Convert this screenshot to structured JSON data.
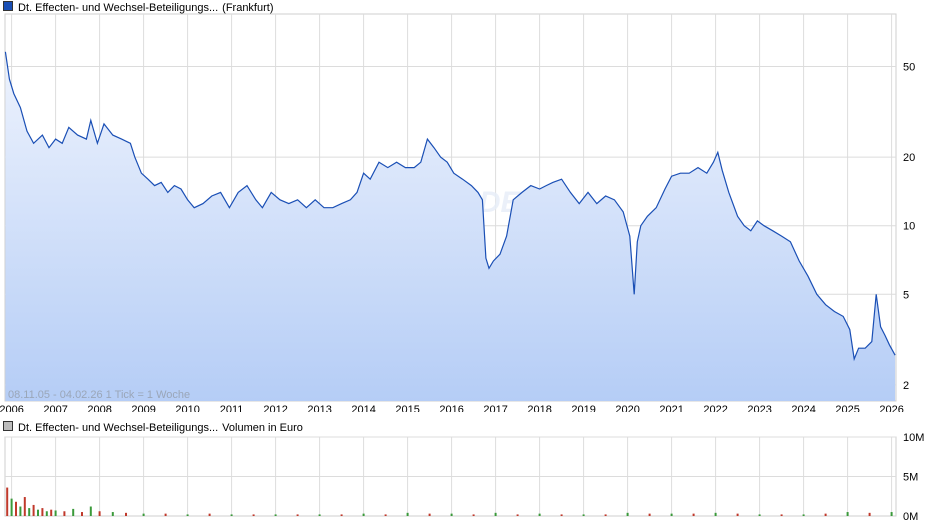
{
  "colors": {
    "line": "#1a4fb5",
    "fill_top": "#eef3fd",
    "fill_bottom": "#b5cdf6",
    "grid": "#dcdcdc",
    "volume_up": "#3a9a3a",
    "volume_down": "#c0392b",
    "price_swatch": "#1a4fb5",
    "volume_swatch": "#bdbdbd"
  },
  "price_legend": {
    "name": "Dt. Effecten- und Wechsel-Beteiligungs...",
    "suffix": "(Frankfurt)"
  },
  "volume_legend": {
    "name": "Dt. Effecten- und Wechsel-Beteiligungs...",
    "suffix": "Volumen in Euro"
  },
  "range_note": "08.11.05 - 04.02.26    1 Tick = 1 Woche",
  "watermark": "ARIVA.DE",
  "chart_data": [
    {
      "type": "line",
      "title": "",
      "scale": "log",
      "ylim": [
        1.7,
        85
      ],
      "xlim": [
        2005.85,
        2026.1
      ],
      "grid": true,
      "x_ticks": [
        "2006",
        "2007",
        "2008",
        "2009",
        "2010",
        "2011",
        "2012",
        "2013",
        "2014",
        "2015",
        "2016",
        "2017",
        "2018",
        "2019",
        "2020",
        "2021",
        "2022",
        "2023",
        "2024",
        "2025",
        "2026"
      ],
      "y_ticks": [
        2,
        5,
        10,
        20,
        50
      ],
      "series": [
        {
          "x": [
            2005.86,
            2005.95,
            2006.05,
            2006.2,
            2006.35,
            2006.5,
            2006.7,
            2006.85,
            2007.0,
            2007.15,
            2007.3,
            2007.5,
            2007.7,
            2007.8,
            2007.95,
            2008.1,
            2008.3,
            2008.5,
            2008.7,
            2008.8,
            2008.95,
            2009.1,
            2009.25,
            2009.4,
            2009.55,
            2009.7,
            2009.85,
            2010.0,
            2010.15,
            2010.35,
            2010.55,
            2010.75,
            2010.95,
            2011.15,
            2011.35,
            2011.55,
            2011.7,
            2011.9,
            2012.1,
            2012.3,
            2012.5,
            2012.7,
            2012.9,
            2013.1,
            2013.3,
            2013.5,
            2013.7,
            2013.85,
            2014.0,
            2014.15,
            2014.35,
            2014.55,
            2014.75,
            2014.95,
            2015.15,
            2015.3,
            2015.45,
            2015.6,
            2015.75,
            2015.9,
            2016.05,
            2016.25,
            2016.45,
            2016.6,
            2016.7,
            2016.78,
            2016.85,
            2016.95,
            2017.1,
            2017.25,
            2017.4,
            2017.6,
            2017.8,
            2018.0,
            2018.15,
            2018.3,
            2018.5,
            2018.7,
            2018.9,
            2019.1,
            2019.3,
            2019.5,
            2019.7,
            2019.9,
            2020.05,
            2020.15,
            2020.22,
            2020.3,
            2020.45,
            2020.65,
            2020.85,
            2021.0,
            2021.2,
            2021.4,
            2021.6,
            2021.8,
            2021.95,
            2022.05,
            2022.15,
            2022.3,
            2022.5,
            2022.65,
            2022.8,
            2022.95,
            2023.1,
            2023.3,
            2023.5,
            2023.7,
            2023.9,
            2024.1,
            2024.3,
            2024.5,
            2024.7,
            2024.9,
            2025.05,
            2025.15,
            2025.25,
            2025.4,
            2025.55,
            2025.65,
            2025.75,
            2025.85,
            2025.95,
            2026.08
          ],
          "values": [
            58,
            44,
            38,
            33,
            26,
            23,
            25,
            22,
            24,
            23,
            27,
            25,
            24,
            29,
            23,
            28,
            25,
            24,
            23,
            20,
            17,
            16,
            15,
            15.5,
            14,
            15,
            14.5,
            13,
            12,
            12.5,
            13.5,
            14,
            12,
            14,
            15,
            13,
            12,
            14,
            13,
            12.5,
            13,
            12,
            13,
            12,
            12,
            12.5,
            13,
            14,
            17,
            16,
            19,
            18,
            19,
            18,
            18,
            19,
            24,
            22,
            20,
            19,
            17,
            16,
            15,
            14,
            13,
            7.2,
            6.5,
            7.0,
            7.5,
            9,
            13,
            14,
            15,
            14.5,
            15,
            15.5,
            16,
            14,
            12.5,
            14,
            12.5,
            13.5,
            13,
            11.5,
            9,
            5.0,
            8.5,
            10,
            11,
            12,
            14.5,
            16.5,
            17,
            17,
            18,
            17,
            19,
            21,
            17.5,
            14,
            11,
            10,
            9.5,
            10.5,
            10,
            9.5,
            9,
            8.5,
            7,
            6,
            5,
            4.5,
            4.2,
            4.0,
            3.5,
            2.6,
            2.9,
            2.9,
            3.1,
            5.0,
            3.6,
            3.3,
            3.0,
            2.7
          ]
        }
      ]
    },
    {
      "type": "bar",
      "title": "",
      "ylim": [
        0,
        10
      ],
      "y_ticks": [
        "10M",
        "5M",
        "0M"
      ],
      "unit": "M",
      "series": [
        {
          "x": [
            2005.9,
            2006.0,
            2006.1,
            2006.2,
            2006.3,
            2006.4,
            2006.5,
            2006.6,
            2006.7,
            2006.8,
            2006.9,
            2007.0,
            2007.2,
            2007.4,
            2007.6,
            2007.8,
            2008.0,
            2008.3,
            2008.6,
            2009.0,
            2009.5,
            2010.0,
            2010.5,
            2011.0,
            2011.5,
            2012.0,
            2012.5,
            2013.0,
            2013.5,
            2014.0,
            2014.5,
            2015.0,
            2015.5,
            2016.0,
            2016.5,
            2017.0,
            2017.5,
            2018.0,
            2018.5,
            2019.0,
            2019.5,
            2020.0,
            2020.5,
            2021.0,
            2021.5,
            2022.0,
            2022.5,
            2023.0,
            2023.5,
            2024.0,
            2024.5,
            2025.0,
            2025.5,
            2026.0
          ],
          "values": [
            3.6,
            2.2,
            1.8,
            1.2,
            2.4,
            1.0,
            1.4,
            0.8,
            1.0,
            0.6,
            0.8,
            0.7,
            0.6,
            0.9,
            0.5,
            1.2,
            0.6,
            0.5,
            0.4,
            0.3,
            0.3,
            0.2,
            0.3,
            0.2,
            0.2,
            0.2,
            0.2,
            0.2,
            0.2,
            0.3,
            0.2,
            0.4,
            0.3,
            0.3,
            0.2,
            0.4,
            0.2,
            0.3,
            0.2,
            0.2,
            0.2,
            0.4,
            0.3,
            0.3,
            0.3,
            0.4,
            0.3,
            0.2,
            0.2,
            0.2,
            0.3,
            0.5,
            0.4,
            0.5
          ],
          "direction": [
            "down",
            "up",
            "down",
            "up",
            "down",
            "up",
            "down",
            "up",
            "down",
            "up",
            "down",
            "up",
            "down",
            "up",
            "down",
            "up",
            "down",
            "up",
            "down",
            "up",
            "down",
            "up",
            "down",
            "up",
            "down",
            "up",
            "down",
            "up",
            "down",
            "up",
            "down",
            "up",
            "down",
            "up",
            "down",
            "up",
            "down",
            "up",
            "down",
            "up",
            "down",
            "up",
            "down",
            "up",
            "down",
            "up",
            "down",
            "up",
            "down",
            "up",
            "down",
            "up",
            "down",
            "up"
          ]
        }
      ]
    }
  ]
}
